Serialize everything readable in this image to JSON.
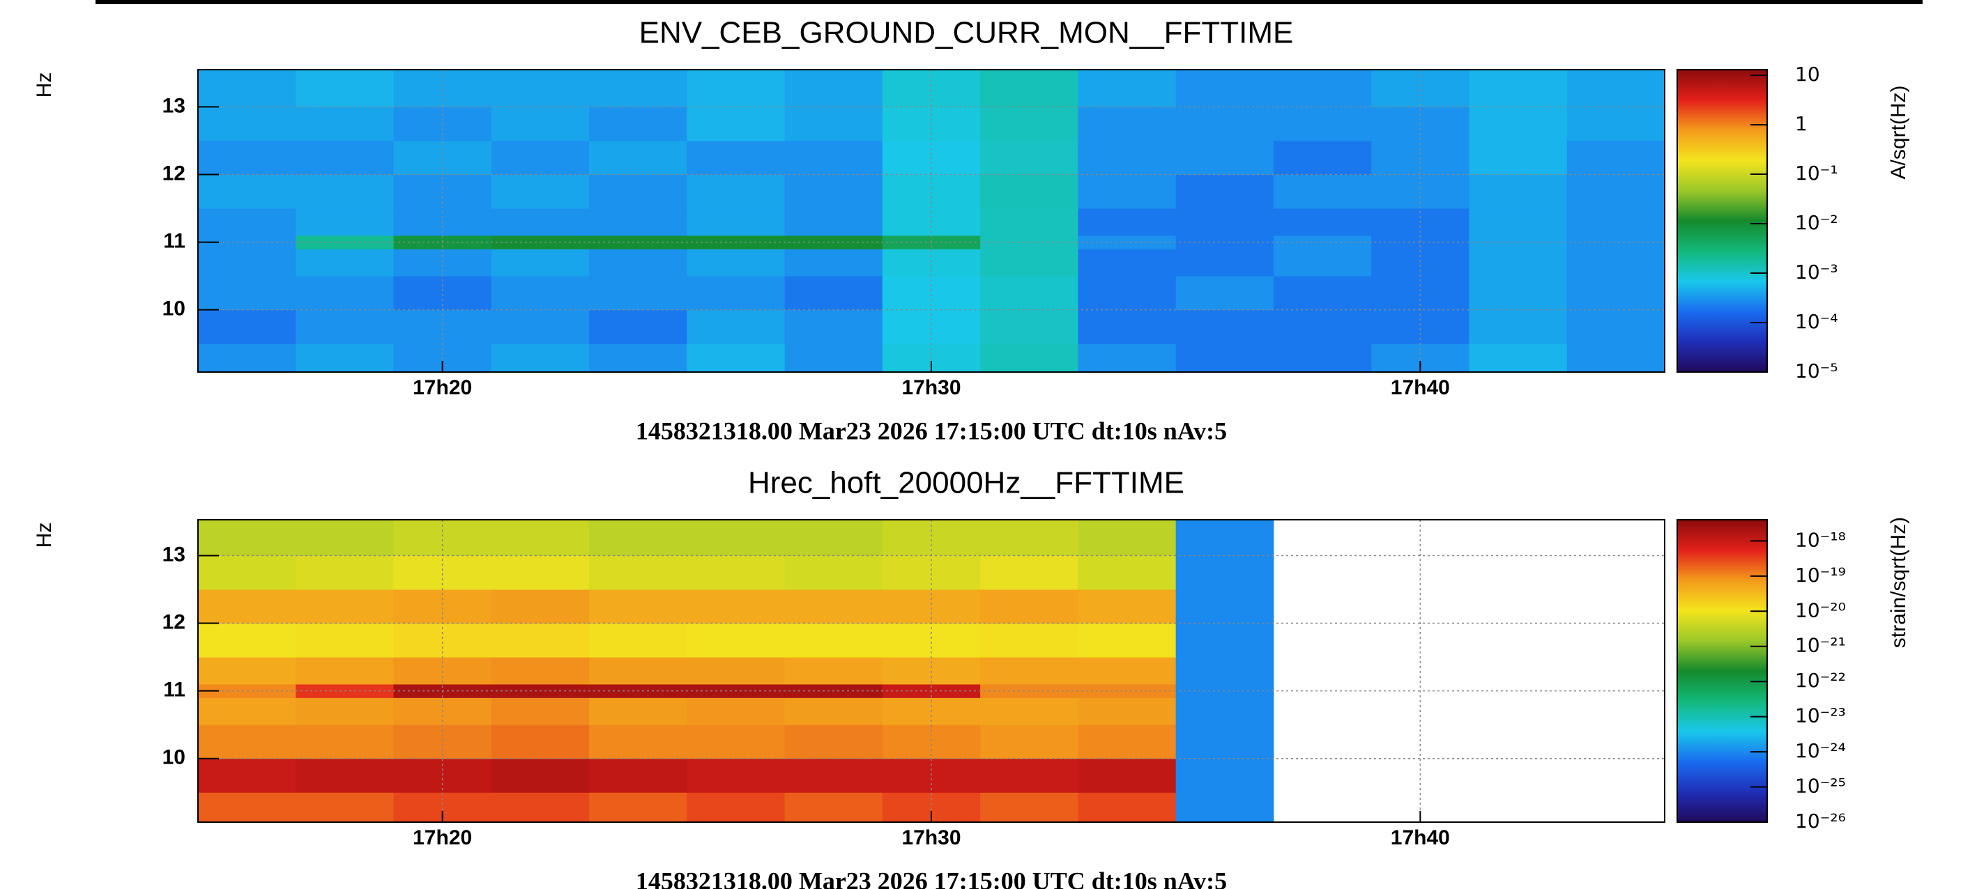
{
  "chart_data": [
    {
      "type": "heatmap",
      "title": "ENV_CEB_GROUND_CURR_MON__FFTTIME",
      "xlabel": "1458321318.00 Mar23 2026 17:15:00 UTC dt:10s nAv:5",
      "ylabel": "Hz",
      "zlabel": "A/sqrt(Hz)",
      "xlim": [
        15,
        45
      ],
      "xticks": [
        {
          "value": 20,
          "label": "17h20"
        },
        {
          "value": 30,
          "label": "17h30"
        },
        {
          "value": 40,
          "label": "17h40"
        }
      ],
      "ylim": [
        9.08,
        13.55
      ],
      "yticks": [
        10,
        11,
        12,
        13
      ],
      "grid": true,
      "x_edges": [
        15,
        17,
        19,
        21,
        23,
        25,
        27,
        29,
        31,
        33,
        35,
        37,
        39,
        41,
        43,
        45
      ],
      "y_edges": [
        9.08,
        9.5,
        10,
        10.5,
        10.9,
        11.1,
        11.5,
        12,
        12.5,
        13,
        13.55
      ],
      "log_z": true,
      "zlim": [
        1e-05,
        13
      ],
      "zticks": [
        10,
        1,
        {
          "value": 0.1,
          "label": "10⁻¹"
        },
        {
          "value": 0.01,
          "label": "10⁻²"
        },
        {
          "value": 0.001,
          "label": "10⁻³"
        },
        {
          "value": 0.0001,
          "label": "10⁻⁴"
        },
        {
          "value": 1e-05,
          "label": "10⁻⁵"
        }
      ],
      "colormap": [
        "#21095a",
        "#1f2fb8",
        "#1a6cf0",
        "#19c8ea",
        "#13b87a",
        "#158a2c",
        "#9cc82a",
        "#f4e41e",
        "#f39a1c",
        "#e3201a",
        "#8a0c0c"
      ],
      "z": [
        [
          0.0003,
          0.0004,
          0.0003,
          0.0004,
          0.0003,
          0.0005,
          0.0003,
          0.0008,
          0.0012,
          0.0003,
          0.0002,
          0.0002,
          0.0003,
          0.0005,
          0.0003
        ],
        [
          0.0002,
          0.0003,
          0.0003,
          0.0003,
          0.0002,
          0.0004,
          0.0003,
          0.0007,
          0.0011,
          0.0002,
          0.0002,
          0.0002,
          0.0002,
          0.0004,
          0.0003
        ],
        [
          0.0003,
          0.0003,
          0.0002,
          0.0003,
          0.0003,
          0.0003,
          0.0002,
          0.0007,
          0.001,
          0.0002,
          0.0003,
          0.0002,
          0.0002,
          0.0004,
          0.0003
        ],
        [
          0.0003,
          0.0004,
          0.0003,
          0.0004,
          0.0003,
          0.0004,
          0.0003,
          0.0008,
          0.0012,
          0.0002,
          0.0002,
          0.0003,
          0.0002,
          0.0004,
          0.0003
        ],
        [
          0.0003,
          0.002,
          0.008,
          0.01,
          0.01,
          0.01,
          0.01,
          0.005,
          0.0012,
          0.0003,
          0.0002,
          0.0003,
          0.0002,
          0.0004,
          0.0003
        ],
        [
          0.0003,
          0.0004,
          0.0003,
          0.0003,
          0.0003,
          0.0004,
          0.0003,
          0.0008,
          0.0012,
          0.0002,
          0.0002,
          0.0002,
          0.0002,
          0.0004,
          0.0003
        ],
        [
          0.0004,
          0.0004,
          0.0003,
          0.0004,
          0.0003,
          0.0004,
          0.0003,
          0.0008,
          0.0013,
          0.0003,
          0.0002,
          0.0003,
          0.0003,
          0.0004,
          0.0003
        ],
        [
          0.0003,
          0.0003,
          0.0004,
          0.0003,
          0.0004,
          0.0003,
          0.0003,
          0.0007,
          0.0011,
          0.0003,
          0.0003,
          0.0002,
          0.0003,
          0.0005,
          0.0003
        ],
        [
          0.0004,
          0.0004,
          0.0003,
          0.0004,
          0.0003,
          0.0005,
          0.0004,
          0.0008,
          0.0012,
          0.0003,
          0.0003,
          0.0003,
          0.0003,
          0.0005,
          0.0004
        ],
        [
          0.0004,
          0.0005,
          0.0004,
          0.0004,
          0.0004,
          0.0005,
          0.0004,
          0.0009,
          0.0013,
          0.0004,
          0.0003,
          0.0003,
          0.0004,
          0.0005,
          0.0004
        ]
      ]
    },
    {
      "type": "heatmap",
      "title": "Hrec_hoft_20000Hz__FFTTIME",
      "xlabel": "1458321318.00 Mar23 2026 17:15:00 UTC dt:10s nAv:5",
      "ylabel": "Hz",
      "zlabel": "strain/sqrt(Hz)",
      "xlim": [
        15,
        45
      ],
      "xticks": [
        {
          "value": 20,
          "label": "17h20"
        },
        {
          "value": 30,
          "label": "17h30"
        },
        {
          "value": 40,
          "label": "17h40"
        }
      ],
      "ylim": [
        9.06,
        13.53
      ],
      "yticks": [
        10,
        11,
        12,
        13
      ],
      "grid": true,
      "x_edges": [
        15,
        17,
        19,
        21,
        23,
        25,
        27,
        29,
        31,
        33,
        35,
        37,
        39,
        41,
        43,
        45
      ],
      "y_edges": [
        9.06,
        9.5,
        10,
        10.5,
        10.9,
        11.1,
        11.5,
        12,
        12.5,
        13,
        13.53
      ],
      "log_z": true,
      "zlim": [
        1e-26,
        4e-18
      ],
      "zticks": [
        {
          "value": 1e-18,
          "label": "10⁻¹⁸"
        },
        {
          "value": 1e-19,
          "label": "10⁻¹⁹"
        },
        {
          "value": 1e-20,
          "label": "10⁻²⁰"
        },
        {
          "value": 1e-21,
          "label": "10⁻²¹"
        },
        {
          "value": 1e-22,
          "label": "10⁻²²"
        },
        {
          "value": 1e-23,
          "label": "10⁻²³"
        },
        {
          "value": 1e-24,
          "label": "10⁻²⁴"
        },
        {
          "value": 1e-25,
          "label": "10⁻²⁵"
        },
        {
          "value": 1e-26,
          "label": "10⁻²⁶"
        }
      ],
      "colormap": [
        "#21095a",
        "#1f2fb8",
        "#1a6cf0",
        "#19c8ea",
        "#13b87a",
        "#158a2c",
        "#9cc82a",
        "#f4e41e",
        "#f39a1c",
        "#e3201a",
        "#8a0c0c"
      ],
      "z": [
        [
          2e-19,
          2e-19,
          3e-19,
          3e-19,
          2e-19,
          3e-19,
          2e-19,
          3e-19,
          2e-19,
          3e-19,
          1e-24,
          null,
          null,
          null,
          null
        ],
        [
          1e-18,
          1.2e-18,
          1.2e-18,
          1.5e-18,
          1.2e-18,
          1e-18,
          1e-18,
          1e-18,
          1e-18,
          1.2e-18,
          1e-24,
          null,
          null,
          null,
          null
        ],
        [
          1e-19,
          1e-19,
          1.2e-19,
          1.5e-19,
          1e-19,
          1e-19,
          1.2e-19,
          1e-19,
          8e-20,
          1e-19,
          1e-24,
          null,
          null,
          null,
          null
        ],
        [
          6e-20,
          7e-20,
          8e-20,
          1e-19,
          7e-20,
          8e-20,
          7e-20,
          6e-20,
          6e-20,
          7e-20,
          1e-24,
          null,
          null,
          null,
          null
        ],
        [
          1e-19,
          4e-19,
          2e-18,
          2e-18,
          2e-18,
          2e-18,
          2e-18,
          1e-18,
          1e-19,
          1e-19,
          1e-24,
          null,
          null,
          null,
          null
        ],
        [
          5e-20,
          6e-20,
          8e-20,
          9e-20,
          7e-20,
          7e-20,
          6e-20,
          5e-20,
          6e-20,
          6e-20,
          1e-24,
          null,
          null,
          null,
          null
        ],
        [
          1e-20,
          1.2e-20,
          1.5e-20,
          1.5e-20,
          1.2e-20,
          1e-20,
          1e-20,
          1e-20,
          1.2e-20,
          1e-20,
          1e-24,
          null,
          null,
          null,
          null
        ],
        [
          5e-20,
          5e-20,
          6e-20,
          7e-20,
          5e-20,
          5e-20,
          5e-20,
          5e-20,
          6e-20,
          5e-20,
          1e-24,
          null,
          null,
          null,
          null
        ],
        [
          5e-21,
          6e-21,
          8e-21,
          8e-21,
          6e-21,
          6e-21,
          5e-21,
          6e-21,
          8e-21,
          5e-21,
          1e-24,
          null,
          null,
          null,
          null
        ],
        [
          3e-21,
          3e-21,
          4e-21,
          4e-21,
          3e-21,
          3e-21,
          3e-21,
          4e-21,
          4e-21,
          3e-21,
          1e-24,
          null,
          null,
          null,
          null
        ]
      ]
    }
  ]
}
